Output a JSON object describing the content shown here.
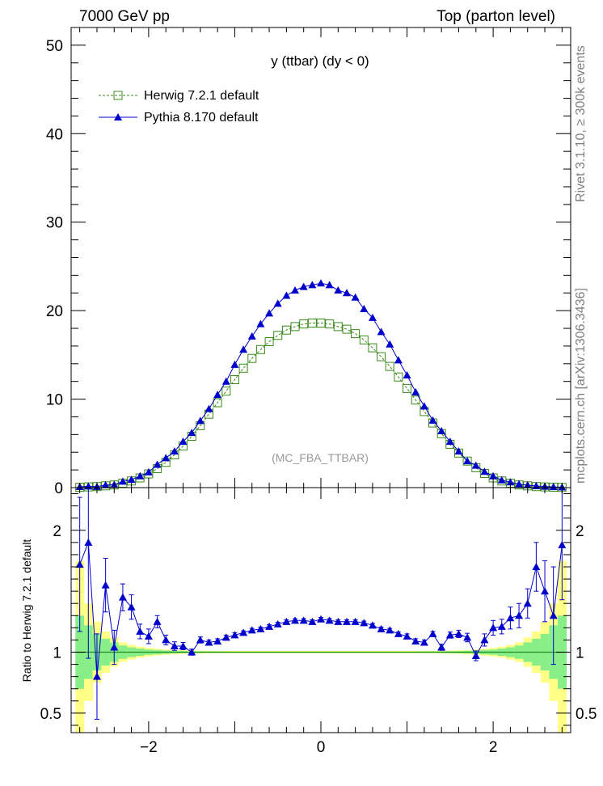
{
  "header": {
    "left": "7000 GeV pp",
    "right": "Top (parton level)"
  },
  "side_labels": {
    "rivet": "Rivet 3.1.10, ≥ 300k events",
    "mcplots": "mcplots.cern.ch [arXiv:1306.3436]"
  },
  "chart_data": [
    {
      "type": "line",
      "title": "y (ttbar) (dy < 0)",
      "watermark": "(MC_FBA_TTBAR)",
      "xlabel": "",
      "ylabel": "",
      "xlim": [
        -2.9,
        2.9
      ],
      "ylim": [
        0,
        52
      ],
      "yticks": [
        "0",
        "10",
        "20",
        "30",
        "40",
        "50"
      ],
      "legend_position": "top-left",
      "x": [
        -2.8,
        -2.7,
        -2.6,
        -2.5,
        -2.4,
        -2.3,
        -2.2,
        -2.1,
        -2.0,
        -1.9,
        -1.8,
        -1.7,
        -1.6,
        -1.5,
        -1.4,
        -1.3,
        -1.2,
        -1.1,
        -1.0,
        -0.9,
        -0.8,
        -0.7,
        -0.6,
        -0.5,
        -0.4,
        -0.3,
        -0.2,
        -0.1,
        0.0,
        0.1,
        0.2,
        0.3,
        0.4,
        0.5,
        0.6,
        0.7,
        0.8,
        0.9,
        1.0,
        1.1,
        1.2,
        1.3,
        1.4,
        1.5,
        1.6,
        1.7,
        1.8,
        1.9,
        2.0,
        2.1,
        2.2,
        2.3,
        2.4,
        2.5,
        2.6,
        2.7,
        2.8
      ],
      "series": [
        {
          "name": "Herwig 7.2.1 default",
          "color": "#3a8a1a",
          "marker": "open-square",
          "line": "dashed",
          "values": [
            0.05,
            0.08,
            0.12,
            0.2,
            0.3,
            0.5,
            0.75,
            1.1,
            1.55,
            2.15,
            2.85,
            3.7,
            4.7,
            5.8,
            7.0,
            8.3,
            9.6,
            10.9,
            12.2,
            13.5,
            14.6,
            15.6,
            16.5,
            17.2,
            17.8,
            18.2,
            18.5,
            18.6,
            18.6,
            18.5,
            18.2,
            17.9,
            17.4,
            16.7,
            15.8,
            14.8,
            13.7,
            12.5,
            11.2,
            9.9,
            8.6,
            7.3,
            6.1,
            4.9,
            3.9,
            3.0,
            2.25,
            1.6,
            1.1,
            0.75,
            0.5,
            0.3,
            0.2,
            0.12,
            0.08,
            0.05,
            0.03
          ]
        },
        {
          "name": "Pythia 8.170 default",
          "color": "#0000cc",
          "marker": "filled-triangle",
          "line": "solid",
          "values": [
            0.09,
            0.15,
            0.1,
            0.3,
            0.33,
            0.7,
            0.9,
            1.3,
            1.75,
            2.6,
            3.35,
            4.1,
            5.2,
            6.2,
            7.55,
            8.9,
            10.5,
            12.0,
            13.9,
            15.6,
            17.1,
            18.5,
            19.7,
            20.8,
            21.7,
            22.3,
            22.7,
            22.9,
            23.1,
            22.9,
            22.3,
            22.0,
            21.5,
            20.2,
            19.2,
            17.6,
            16.2,
            14.4,
            12.7,
            10.8,
            9.2,
            7.6,
            6.4,
            5.2,
            4.1,
            3.0,
            2.5,
            1.8,
            1.3,
            0.85,
            0.62,
            0.4,
            0.28,
            0.18,
            0.13,
            0.08,
            0.05
          ]
        }
      ]
    },
    {
      "type": "line",
      "title": "",
      "xlabel": "",
      "ylabel": "Ratio to Herwig 7.2.1 default",
      "xlim": [
        -2.9,
        2.9
      ],
      "ylim": [
        0.34,
        2.35
      ],
      "yticks": [
        "0.5",
        "1",
        "2"
      ],
      "xticks": [
        "−2",
        "0",
        "2"
      ],
      "reference": 1.0,
      "x": [
        -2.8,
        -2.7,
        -2.6,
        -2.5,
        -2.4,
        -2.3,
        -2.2,
        -2.1,
        -2.0,
        -1.9,
        -1.8,
        -1.7,
        -1.6,
        -1.5,
        -1.4,
        -1.3,
        -1.2,
        -1.1,
        -1.0,
        -0.9,
        -0.8,
        -0.7,
        -0.6,
        -0.5,
        -0.4,
        -0.3,
        -0.2,
        -0.1,
        0.0,
        0.1,
        0.2,
        0.3,
        0.4,
        0.5,
        0.6,
        0.7,
        0.8,
        0.9,
        1.0,
        1.1,
        1.2,
        1.3,
        1.4,
        1.5,
        1.6,
        1.7,
        1.8,
        1.9,
        2.0,
        2.1,
        2.2,
        2.3,
        2.4,
        2.5,
        2.6,
        2.7,
        2.8
      ],
      "band_green_halfwidth": [
        0.3,
        0.22,
        0.15,
        0.11,
        0.08,
        0.055,
        0.04,
        0.03,
        0.022,
        0.018,
        0.014,
        0.011,
        0.009,
        0.008,
        0.007,
        0.006,
        0.006,
        0.005,
        0.005,
        0.005,
        0.005,
        0.005,
        0.005,
        0.005,
        0.005,
        0.005,
        0.005,
        0.005,
        0.005,
        0.005,
        0.005,
        0.005,
        0.005,
        0.005,
        0.005,
        0.005,
        0.005,
        0.005,
        0.005,
        0.005,
        0.006,
        0.006,
        0.007,
        0.008,
        0.009,
        0.011,
        0.014,
        0.018,
        0.022,
        0.03,
        0.04,
        0.055,
        0.08,
        0.11,
        0.15,
        0.22,
        0.3
      ],
      "band_yellow_halfwidth": [
        0.75,
        0.4,
        0.25,
        0.17,
        0.12,
        0.08,
        0.06,
        0.045,
        0.035,
        0.028,
        0.022,
        0.018,
        0.015,
        0.013,
        0.012,
        0.011,
        0.01,
        0.01,
        0.01,
        0.01,
        0.01,
        0.01,
        0.01,
        0.01,
        0.01,
        0.01,
        0.01,
        0.01,
        0.01,
        0.01,
        0.01,
        0.01,
        0.01,
        0.01,
        0.01,
        0.01,
        0.01,
        0.01,
        0.01,
        0.01,
        0.01,
        0.011,
        0.012,
        0.013,
        0.015,
        0.018,
        0.022,
        0.028,
        0.035,
        0.045,
        0.06,
        0.08,
        0.12,
        0.17,
        0.25,
        0.4,
        0.75
      ],
      "series": [
        {
          "name": "Pythia 8.170 default",
          "color": "#0000cc",
          "values": [
            1.72,
            1.9,
            0.8,
            1.55,
            1.04,
            1.45,
            1.37,
            1.17,
            1.13,
            1.25,
            1.1,
            1.05,
            1.05,
            1.0,
            1.1,
            1.08,
            1.09,
            1.12,
            1.14,
            1.16,
            1.18,
            1.19,
            1.21,
            1.23,
            1.25,
            1.26,
            1.26,
            1.25,
            1.27,
            1.26,
            1.25,
            1.25,
            1.25,
            1.24,
            1.22,
            1.19,
            1.18,
            1.15,
            1.13,
            1.09,
            1.08,
            1.15,
            1.04,
            1.14,
            1.15,
            1.12,
            0.97,
            1.1,
            1.2,
            1.21,
            1.28,
            1.3,
            1.4,
            1.7,
            1.5,
            1.3,
            1.88
          ],
          "errors": [
            0.55,
            0.95,
            0.35,
            0.22,
            0.14,
            0.11,
            0.1,
            0.06,
            0.06,
            0.05,
            0.04,
            0.035,
            0.03,
            0.025,
            0.025,
            0.02,
            0.02,
            0.02,
            0.02,
            0.015,
            0.015,
            0.015,
            0.015,
            0.015,
            0.015,
            0.015,
            0.015,
            0.015,
            0.015,
            0.015,
            0.015,
            0.015,
            0.015,
            0.015,
            0.015,
            0.015,
            0.015,
            0.015,
            0.02,
            0.02,
            0.02,
            0.02,
            0.025,
            0.025,
            0.03,
            0.035,
            0.04,
            0.05,
            0.06,
            0.06,
            0.09,
            0.1,
            0.12,
            0.2,
            0.25,
            0.4,
            0.45
          ]
        }
      ]
    }
  ]
}
